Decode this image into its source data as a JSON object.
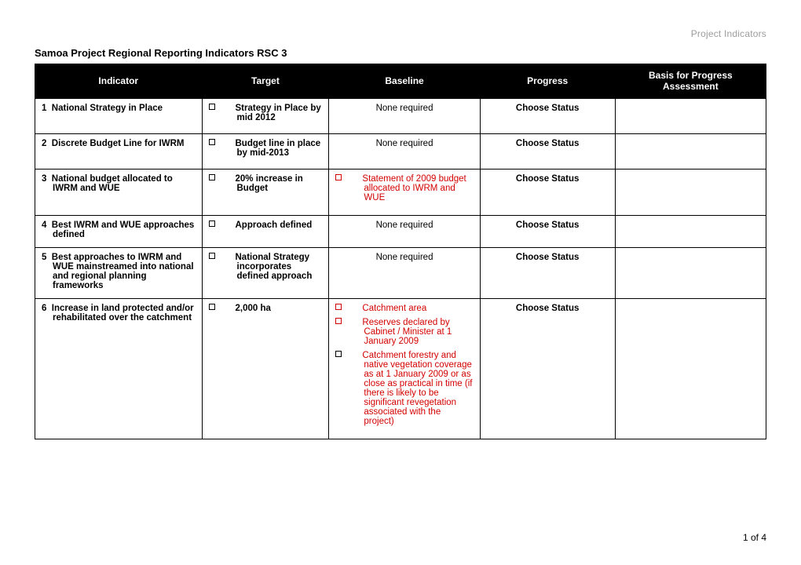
{
  "header": {
    "right": "Project Indicators"
  },
  "title": "Samoa Project Regional Reporting Indicators RSC 3",
  "columns": [
    "Indicator",
    "Target",
    "Baseline",
    "Progress",
    "Basis for Progress Assessment"
  ],
  "rows": [
    {
      "num": "1",
      "indicator": "National Strategy in Place",
      "target": "Strategy in Place by mid 2012",
      "baseline_plain": "None required",
      "progress": "Choose Status",
      "basis": ""
    },
    {
      "num": "2",
      "indicator": "Discrete Budget Line for IWRM",
      "target": "Budget line in place by mid-2013",
      "baseline_plain": "None required",
      "progress": "Choose Status",
      "basis": ""
    },
    {
      "num": "3",
      "indicator": "National budget allocated to IWRM and WUE",
      "target": "20% increase in Budget",
      "baseline_items": [
        "Statement of 2009 budget allocated to IWRM and WUE"
      ],
      "progress": "Choose Status",
      "basis": ""
    },
    {
      "num": "4",
      "indicator": "Best IWRM and WUE approaches defined",
      "target": "Approach defined",
      "baseline_plain": "None required",
      "progress": "Choose Status",
      "basis": ""
    },
    {
      "num": "5",
      "indicator": "Best approaches to IWRM and WUE mainstreamed into national and regional planning frameworks",
      "target": "National Strategy incorporates defined approach",
      "baseline_plain": "None required",
      "progress": "Choose Status",
      "basis": ""
    },
    {
      "num": "6",
      "indicator": "Increase in land protected and/or rehabilitated over the catchment",
      "target": "2,000 ha",
      "baseline_items": [
        "Catchment area",
        "Reserves declared by Cabinet / Minister at 1 January 2009",
        "Catchment forestry and native vegetation coverage as at 1 January 2009 or as close as practical in time (if there is likely to be significant revegetation associated with the project)"
      ],
      "progress": "Choose Status",
      "basis": ""
    }
  ],
  "footer": {
    "page": "1 of 4"
  },
  "colors": {
    "header_bg": "#000000",
    "header_fg": "#ffffff",
    "body_fg": "#000000",
    "muted": "#9d9d9d",
    "red": "#d40000",
    "border": "#000000"
  }
}
